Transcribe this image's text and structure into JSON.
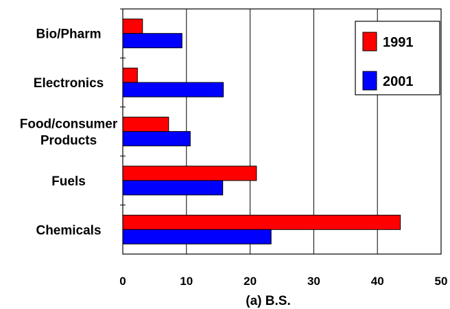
{
  "chart_data": {
    "type": "bar",
    "orientation": "horizontal",
    "categories": [
      "Chemicals",
      "Fuels",
      "Food/consumer\nProducts",
      "Electronics",
      "Bio/Pharm"
    ],
    "series": [
      {
        "name": "1991",
        "values": [
          43.6,
          21.0,
          7.2,
          2.3,
          3.1
        ],
        "color": "#ff0000"
      },
      {
        "name": "2001",
        "values": [
          23.3,
          15.7,
          10.6,
          15.8,
          9.3
        ],
        "color": "#0000ff"
      }
    ],
    "xlabel": "(a) B.S.",
    "ylabel": "",
    "title": "",
    "xlim": [
      0,
      50
    ],
    "xticks": [
      "0",
      "10",
      "20",
      "30",
      "40",
      "50"
    ],
    "grid": "vertical",
    "legend_position": "top-right"
  }
}
